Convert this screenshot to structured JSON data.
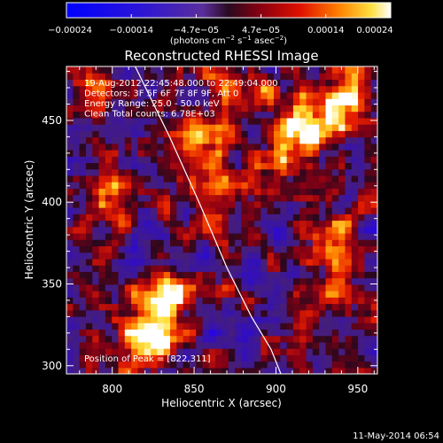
{
  "colorbar": {
    "ticks": [
      "−0.00024",
      "−0.00014",
      "−4.7e−05",
      "4.7e−05",
      "0.00014",
      "0.00024"
    ],
    "unit_label": "(photons cm",
    "unit_exp1": "−2",
    "unit_mid": " s",
    "unit_exp2": "−1",
    "unit_end": " asec",
    "unit_exp3": "−2",
    "unit_close": ")",
    "range": [
      -0.00024,
      0.00024
    ]
  },
  "chart_data": {
    "type": "heatmap",
    "title": "Reconstructed RHESSI Image",
    "xlabel": "Heliocentric X (arcsec)",
    "ylabel": "Heliocentric Y (arcsec)",
    "xlim": [
      772,
      962
    ],
    "ylim": [
      295,
      483
    ],
    "xticks": [
      800,
      850,
      900,
      950
    ],
    "yticks": [
      300,
      350,
      400,
      450
    ],
    "annotations": [
      "19-Aug-2012 22:45:48.000 to 22:49:04.000",
      "Detectors: 3F 5F 6F 7F 8F 9F, Att 0",
      "Energy Range: 25.0 - 50.0 keV",
      "Clean     Total counts: 6.78E+03"
    ],
    "peak_label": "Position of Peak = [822,311]",
    "peak": [
      822,
      311
    ],
    "limb_curve": [
      [
        814,
        483
      ],
      [
        835,
        440
      ],
      [
        853,
        400
      ],
      [
        870,
        360
      ],
      [
        885,
        330
      ],
      [
        897,
        310
      ],
      [
        903,
        295
      ]
    ],
    "bright_regions": [
      {
        "x": 830,
        "y": 340,
        "strength": 1.0
      },
      {
        "x": 822,
        "y": 312,
        "strength": 0.9
      },
      {
        "x": 855,
        "y": 438,
        "strength": 0.7
      },
      {
        "x": 917,
        "y": 445,
        "strength": 0.8
      },
      {
        "x": 940,
        "y": 460,
        "strength": 0.7
      },
      {
        "x": 868,
        "y": 405,
        "strength": 0.6
      },
      {
        "x": 935,
        "y": 380,
        "strength": 0.6
      },
      {
        "x": 945,
        "y": 345,
        "strength": 0.5
      },
      {
        "x": 880,
        "y": 470,
        "strength": 0.6
      },
      {
        "x": 905,
        "y": 420,
        "strength": 0.55
      },
      {
        "x": 790,
        "y": 470,
        "strength": 0.5
      },
      {
        "x": 795,
        "y": 400,
        "strength": 0.45
      }
    ]
  },
  "footer": {
    "date": "11-May-2014 06:54"
  }
}
